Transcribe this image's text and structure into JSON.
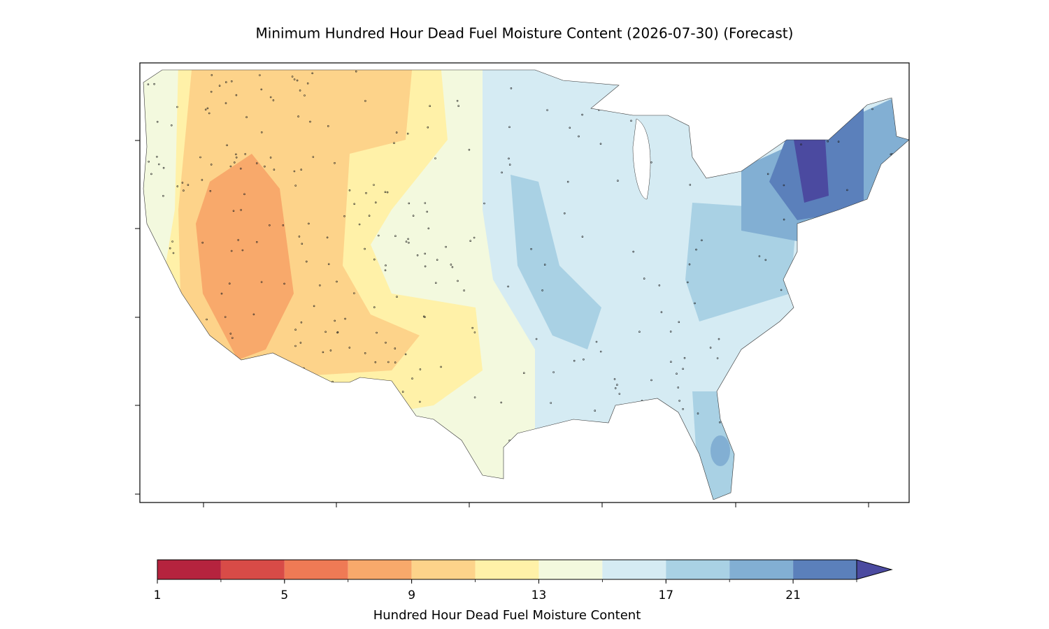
{
  "chart_data": {
    "type": "map",
    "title": "Minimum Hundred Hour Dead Fuel Moisture Content (2026-07-30) (Forecast)",
    "colorbar": {
      "label": "Hundred Hour Dead Fuel Moisture Content",
      "boundaries": [
        1,
        3,
        5,
        7,
        9,
        11,
        13,
        15,
        17,
        19,
        21,
        23
      ],
      "colors": [
        "#b5233e",
        "#d84b47",
        "#ef7a55",
        "#f8a96b",
        "#fdd38a",
        "#fff1a8",
        "#f3f9de",
        "#d5ebf3",
        "#a9d1e4",
        "#82afd3",
        "#5b80bb"
      ],
      "extend_color": "#4b4aa0",
      "ticks": [
        1,
        5,
        9,
        13,
        17,
        21
      ]
    }
  }
}
